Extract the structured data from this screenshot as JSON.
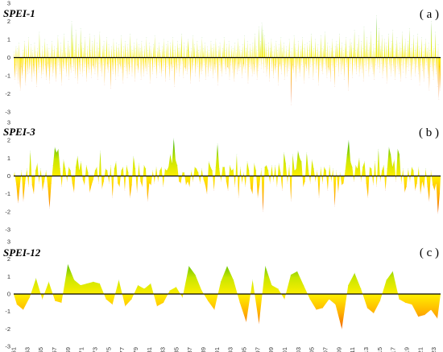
{
  "chart_data": [
    {
      "type": "area",
      "title": "SPEI-1",
      "panel_label": "( a )",
      "ylim": [
        -3,
        3
      ],
      "yticks": [
        -3,
        -2,
        -1,
        0,
        1,
        2,
        3
      ],
      "x_start": 1961,
      "x_end": 2024,
      "step": "month",
      "series": [
        {
          "values": [
            0.3,
            -1.2,
            -0.4,
            0.6,
            -0.9,
            0.5,
            -1.4,
            0.8,
            -0.6,
            -1.8,
            0.2,
            -0.5,
            -1.1,
            0.4,
            -0.7,
            0.9,
            -0.3,
            -1.5,
            0.6,
            -0.2,
            -0.9,
            1.1,
            -0.8,
            0.1,
            -0.6,
            0.7,
            -1.3,
            0.4,
            -0.4,
            -1.0,
            0.8,
            -0.7,
            0.3,
            -1.6,
            0.5,
            -0.2,
            -0.8,
            1.4,
            -0.5,
            0.2,
            -1.1,
            0.6,
            -0.9,
            0.3,
            -0.6,
            1.0,
            -0.4,
            -1.2,
            0.7,
            -0.3,
            -0.7,
            0.5,
            -1.4,
            0.2,
            -0.5,
            0.9,
            -1.0,
            0.4,
            -0.8,
            0.6,
            -0.3,
            -1.3,
            0.5,
            -0.6,
            1.2,
            -0.4,
            0.3,
            -0.9,
            0.8,
            -1.5,
            0.4,
            -0.2,
            -0.7,
            1.3,
            -0.6,
            0.5,
            -1.0,
            0.2,
            -0.4,
            0.9,
            -1.2,
            0.6,
            -0.3,
            -0.8,
            2.0,
            -0.5,
            1.2,
            -0.7,
            0.4,
            -1.1,
            1.5,
            -0.6,
            0.3,
            -1.4,
            0.7,
            -0.2,
            -0.9,
            1.6,
            -0.4,
            0.8,
            -1.0,
            0.5,
            -0.7,
            1.1,
            -0.5,
            0.2,
            -1.3,
            0.6,
            -0.3,
            -0.8,
            1.3,
            -0.6,
            0.4,
            -1.1,
            0.9,
            -0.4,
            -0.6,
            1.2,
            -0.9,
            0.3,
            -0.5,
            0.8,
            -1.2,
            0.5,
            -0.3,
            1.4,
            -0.7,
            0.2,
            -1.0,
            0.6,
            -0.4,
            0.9,
            -1.5,
            0.4,
            -0.6,
            1.1,
            -0.3,
            -0.8,
            0.7,
            -0.5,
            0.3,
            -1.7,
            0.6,
            -0.2,
            -0.9,
            1.0,
            -0.6,
            0.4,
            -1.2,
            0.8,
            -0.4,
            0.5,
            -1.0,
            0.7,
            -0.3,
            -0.6,
            1.2,
            -0.8,
            0.3,
            -1.4,
            0.6,
            -0.5,
            0.9,
            -0.7,
            0.4,
            -1.1,
            0.7,
            -0.3,
            -0.9,
            1.3,
            -0.5,
            0.6,
            -1.0,
            0.4,
            -0.2,
            0.8,
            -1.3,
            0.5,
            -0.6,
            1.0,
            -0.4,
            -0.8,
            0.7,
            -0.3,
            0.5,
            -1.2,
            0.9,
            -0.6,
            0.3,
            -1.0,
            0.6,
            -0.2,
            -0.7,
            1.1,
            -0.9,
            0.4,
            -0.5,
            0.8,
            -1.4,
            0.6,
            -0.3,
            0.2,
            -0.9,
            0.7,
            -0.5,
            1.2,
            -0.6,
            0.3,
            -1.1,
            0.5,
            -0.4,
            0.8,
            -0.8,
            0.4,
            -0.2,
            -1.0,
            0.6,
            -0.7,
            1.0,
            -0.4,
            0.3,
            -1.3,
            0.7,
            -0.5,
            0.9,
            -0.6,
            0.2,
            -1.2,
            0.8,
            -0.3,
            -0.7,
            1.1,
            -0.5,
            0.4,
            -1.6,
            0.6,
            -0.2,
            -0.8,
            0.9,
            -0.4,
            0.5,
            -1.0,
            0.7,
            -0.6,
            1.3,
            -0.3,
            0.2,
            -1.1,
            0.8,
            -0.5,
            -0.7,
            0.6,
            -0.9,
            0.4,
            1.0,
            -0.6,
            0.3,
            -1.4,
            0.5,
            -0.2,
            -0.8,
            1.2,
            -0.4,
            0.7,
            -1.0,
            0.3,
            -0.6,
            0.9,
            -0.5,
            0.4,
            -1.3,
            0.6,
            -0.3,
            -0.9,
            1.1,
            -0.7,
            0.5,
            -0.4,
            0.8,
            -1.2,
            0.3,
            -0.5,
            0.6,
            -1.0,
            0.4,
            -0.2,
            -0.7,
            0.9,
            -0.6,
            0.5,
            -1.1,
            0.7,
            -0.3,
            -0.8,
            1.0,
            -0.5,
            0.3,
            -1.5,
            0.6,
            -0.4,
            0.8,
            -0.7,
            0.2,
            -1.0,
            0.5,
            -0.3,
            1.1,
            -0.6,
            0.4,
            -0.9,
            0.7,
            -0.5,
            -0.6,
            0.9,
            -1.2,
            0.3,
            -0.4,
            0.6,
            -0.8,
            0.5,
            -0.2,
            -1.3,
            0.8,
            -0.6,
            0.4,
            -0.9,
            1.0,
            -0.3,
            -0.7,
            0.6,
            -0.5,
            0.4,
            -1.1,
            0.7,
            -0.3,
            -0.6,
            1.2,
            -0.8,
            0.5,
            -0.4,
            0.9,
            -1.4,
            0.3,
            -0.5,
            0.7,
            -0.6,
            0.4,
            -1.0,
            0.8,
            -0.3,
            -0.9,
            1.3,
            -0.5,
            0.6,
            -1.2,
            0.4,
            -0.7,
            1.7,
            -0.4,
            0.9,
            -0.6,
            1.9,
            -0.3,
            1.5,
            -0.8,
            1.2,
            -0.5,
            0.7,
            -1.0,
            0.4,
            -0.6,
            0.8,
            -1.3,
            0.5,
            -0.3,
            1.0,
            -0.7,
            0.3,
            -1.1,
            0.6,
            -0.4,
            -0.8,
            0.9,
            -0.5,
            0.4,
            -1.5,
            0.7,
            -0.3,
            -0.6,
            1.1,
            -0.9,
            0.5,
            -0.4,
            0.8,
            -1.2,
            0.3,
            -0.5,
            0.6,
            -1.0,
            0.4,
            -0.7,
            1.0,
            -0.6,
            0.3,
            -2.6,
            0.5,
            -0.4,
            -0.8,
            1.2,
            -0.5,
            0.7,
            -1.3,
            0.4,
            -0.6,
            0.9,
            -0.8,
            0.3,
            -1.0,
            0.6,
            -0.4,
            1.1,
            -0.5,
            0.5,
            -1.4,
            0.7,
            -0.3,
            -0.7,
            0.8,
            -0.6,
            0.4,
            -1.1,
            0.9,
            -0.5,
            1.3,
            -0.4,
            0.6,
            -1.2,
            0.5,
            -0.3,
            1.0,
            -0.8,
            0.4,
            -0.6,
            0.7,
            -1.5,
            0.3,
            -0.4,
            1.2,
            -0.7,
            0.5,
            -0.9,
            0.6,
            -0.3,
            1.4,
            -0.6,
            0.4,
            -1.1,
            0.8,
            -0.5,
            -0.8,
            0.6,
            -1.3,
            0.5,
            -0.4,
            1.0,
            -0.7,
            0.3,
            -1.6,
            0.6,
            -0.5,
            0.9,
            -0.4,
            0.7,
            -1.0,
            1.3,
            -0.3,
            0.5,
            -0.9,
            0.8,
            -0.6,
            0.4,
            -1.2,
            0.7,
            -0.4,
            1.1,
            -0.5,
            0.3,
            -1.8,
            0.6,
            -0.7,
            1.0,
            -0.3,
            0.8,
            -1.1,
            0.5,
            -0.4,
            1.5,
            -0.6,
            0.4,
            -0.9,
            0.7,
            -0.5,
            1.2,
            -1.0,
            0.3,
            -0.6,
            0.9,
            -0.8,
            0.5,
            -1.3,
            1.7,
            -0.4,
            0.6,
            -0.7,
            1.1,
            -0.3,
            0.4,
            -1.0,
            0.8,
            -0.6,
            1.4,
            -0.5,
            0.3,
            -0.9,
            0.7,
            -1.2,
            0.5,
            -0.4,
            2.3,
            -0.6,
            0.9,
            -0.5,
            1.6,
            -0.8,
            0.6,
            -0.3,
            1.2,
            -1.1,
            0.4,
            -0.7,
            1.0,
            -0.5,
            0.8,
            -1.4,
            0.6,
            -0.3,
            1.3,
            -0.6,
            0.5,
            -1.0,
            0.9,
            -0.4,
            1.5,
            -0.7,
            0.3,
            -1.2,
            0.7,
            -0.5,
            1.1,
            -0.6,
            0.4,
            -0.9,
            0.8,
            -1.3,
            0.5,
            -0.4,
            1.4,
            -0.8,
            0.6,
            -0.3,
            1.0,
            -1.1,
            0.4,
            -0.5,
            0.9,
            -0.7,
            1.6,
            -0.4,
            0.5,
            -1.2,
            0.7,
            -0.6,
            1.2,
            -0.3,
            0.4,
            -1.0,
            0.8,
            -0.5,
            1.3,
            -0.9,
            0.6,
            -1.5,
            0.5,
            -0.4,
            1.1,
            -0.7,
            0.3,
            -1.3,
            0.7,
            -0.6,
            1.0,
            -0.4,
            0.5,
            -1.1,
            0.8,
            -1.8,
            0.4,
            -0.5,
            2.0,
            -0.7,
            0.6,
            -1.2,
            0.5,
            -0.4,
            1.4,
            -0.9,
            0.3,
            -1.6,
            0.7,
            -2.3,
            -0.5,
            -1.8
          ]
        }
      ],
      "x_tick_labels": []
    },
    {
      "type": "area",
      "title": "SPEI-3",
      "panel_label": "( b )",
      "ylim": [
        -3,
        3
      ],
      "yticks": [
        -3,
        -2,
        -1,
        0,
        1,
        2,
        3
      ],
      "x_start": 1961,
      "x_end": 2024,
      "step": "season",
      "series": [
        {
          "values": [
            0.2,
            -0.5,
            -1.5,
            -0.6,
            0.3,
            -1.4,
            -0.4,
            0.4,
            -0.6,
            1.4,
            -0.5,
            -1.0,
            0.3,
            0.7,
            -0.4,
            0.4,
            -0.8,
            -0.3,
            0.3,
            -0.6,
            -1.8,
            -0.4,
            0.6,
            1.6,
            1.3,
            1.5,
            0.4,
            -0.6,
            0.9,
            0.4,
            -0.3,
            0.5,
            0.3,
            -0.4,
            -0.9,
            0.5,
            1.1,
            0.3,
            0.8,
            -0.2,
            -0.5,
            0.6,
            0.2,
            -0.9,
            -0.5,
            -0.2,
            0.3,
            0.5,
            -0.4,
            1.4,
            -0.7,
            -0.3,
            0.4,
            0.3,
            -0.4,
            0.6,
            -1.2,
            0.4,
            0.8,
            -0.4,
            -0.6,
            0.3,
            0.5,
            -0.8,
            0.6,
            0.2,
            -1.2,
            -0.5,
            1.1,
            0.4,
            -0.9,
            0.7,
            -0.3,
            -0.6,
            0.6,
            0.4,
            -1.4,
            -0.4,
            -0.5,
            0.3,
            -0.4,
            0.5,
            -0.3,
            0.3,
            0.5,
            -0.6,
            0.4,
            0.3,
            0.5,
            1.2,
            0.7,
            2.1,
            0.9,
            0.6,
            -0.3,
            -0.4,
            0.2,
            0.2,
            -0.5,
            -0.3,
            -0.6,
            0.3,
            -0.3,
            0.5,
            0.4,
            0.2,
            -0.4,
            0.4,
            -0.2,
            -0.5,
            -1.0,
            0.8,
            0.5,
            0.3,
            -0.8,
            0.5,
            1.8,
            0.4,
            -0.3,
            0.5,
            0.5,
            -0.3,
            -0.8,
            0.6,
            0.3,
            0.4,
            -0.6,
            1.2,
            -1.2,
            0.5,
            -0.4,
            0.2,
            -0.6,
            0.8,
            0.3,
            -0.7,
            -1.0,
            0.7,
            0.3,
            -1.2,
            -0.5,
            0.4,
            -2.0,
            0.5,
            0.6,
            0.3,
            -0.4,
            0.6,
            -0.3,
            0.6,
            -0.6,
            0.7,
            0.2,
            -0.8,
            1.3,
            0.7,
            -0.4,
            0.6,
            -1.4,
            1.2,
            0.3,
            0.4,
            1.4,
            1.0,
            0.8,
            -0.6,
            -0.3,
            1.3,
            0.3,
            -0.4,
            0.9,
            0.4,
            -0.3,
            0.3,
            -1.2,
            0.5,
            -0.4,
            0.5,
            0.3,
            -0.8,
            0.6,
            -0.3,
            0.4,
            -1.7,
            0.3,
            -0.9,
            0.2,
            -0.5,
            -0.4,
            0.3,
            1.2,
            2.0,
            0.8,
            0.5,
            -0.3,
            0.6,
            0.4,
            1.0,
            -0.3,
            0.5,
            0.8,
            -0.4,
            -1.2,
            0.5,
            0.4,
            -0.5,
            0.8,
            -0.6,
            1.5,
            -0.3,
            0.3,
            0.6,
            -0.8,
            0.4,
            1.6,
            1.2,
            0.5,
            0.9,
            -0.3,
            1.5,
            1.2,
            -0.4,
            0.4,
            -0.9,
            -0.6,
            0.4,
            -0.3,
            0.5,
            0.3,
            -0.8,
            -0.4,
            0.5,
            -1.0,
            -0.3,
            -0.7,
            0.4,
            -0.6,
            -1.4,
            0.3,
            -0.5,
            -0.8,
            -0.4,
            -2.1,
            -1.0
          ]
        }
      ],
      "x_tick_labels": []
    },
    {
      "type": "area",
      "title": "SPEI-12",
      "panel_label": "( c )",
      "ylim": [
        -3,
        3
      ],
      "yticks": [
        -3,
        -2,
        -1,
        0,
        1,
        2,
        3
      ],
      "x_start": 1961,
      "x_end": 2024,
      "step": "year",
      "series": [
        {
          "values": [
            -0.6,
            -0.9,
            -0.2,
            0.9,
            -0.3,
            0.7,
            -0.4,
            -0.5,
            1.7,
            0.8,
            0.5,
            0.6,
            0.7,
            0.6,
            -0.3,
            -0.6,
            0.8,
            -0.7,
            -0.3,
            0.5,
            0.3,
            0.6,
            -0.7,
            -0.5,
            0.2,
            0.4,
            -0.2,
            1.6,
            1.1,
            0.2,
            -0.4,
            -0.9,
            0.7,
            1.6,
            0.8,
            -0.5,
            -1.6,
            0.8,
            -1.7,
            1.6,
            0.5,
            0.3,
            -0.3,
            1.1,
            1.3,
            0.5,
            -0.3,
            -0.9,
            -0.8,
            -0.3,
            -0.6,
            -2.0,
            0.5,
            1.2,
            0.3,
            -0.8,
            -1.1,
            -0.4,
            0.8,
            1.3,
            -0.3,
            -0.5,
            -0.6,
            -1.3,
            -1.2,
            -0.9,
            -1.4
          ]
        }
      ],
      "x_tick_labels": [
        "1961",
        "1963",
        "1965",
        "1967",
        "1969",
        "1971",
        "1973",
        "1975",
        "1977",
        "1979",
        "1981",
        "1983",
        "1985",
        "1987",
        "1989",
        "1991",
        "1993",
        "1995",
        "1997",
        "1999",
        "2001",
        "2003",
        "2005",
        "2007",
        "2009",
        "2011",
        "2013",
        "2015",
        "2017",
        "2019",
        "2021",
        "2023"
      ]
    }
  ],
  "colors": {
    "high_positive": "#1aa800",
    "low_positive": "#c8e600",
    "near_zero": "#ffee00",
    "mid_negative": "#ffb300",
    "high_negative": "#ee4b00",
    "zero_line": "#000000"
  }
}
